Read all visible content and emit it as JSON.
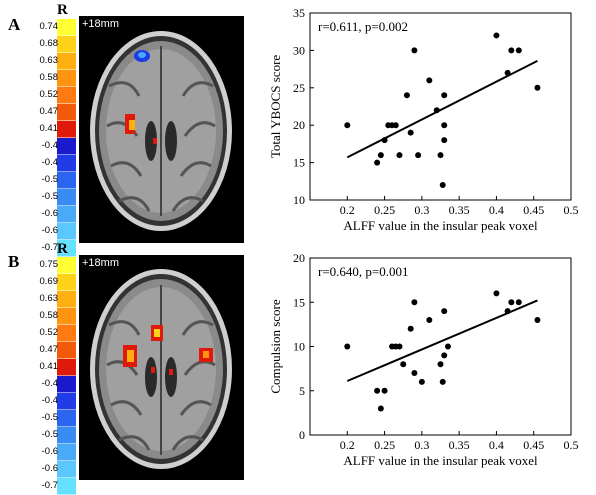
{
  "panels": [
    {
      "letter": "A",
      "orientation_label": "R",
      "slice_label": "+18mm",
      "colorbar_ticks": [
        "0.74",
        "0.68",
        "0.63",
        "0.58",
        "0.52",
        "0.47",
        "0.41",
        "-0.4",
        "-0.4",
        "-0.5",
        "-0.5",
        "-0.6",
        "-0.6",
        "-0.7"
      ],
      "colorbar_colors": [
        "#ffff33",
        "#ffd21a",
        "#ffb010",
        "#ff9410",
        "#ff7a10",
        "#f25a0a",
        "#e01a0a",
        "#1a1acc",
        "#1f3ce6",
        "#2a66f0",
        "#3a8cf5",
        "#4aaaf8",
        "#5ac8fb",
        "#66e0ff"
      ]
    },
    {
      "letter": "B",
      "orientation_label": "R",
      "slice_label": "+18mm",
      "colorbar_ticks": [
        "0.75",
        "0.69",
        "0.63",
        "0.58",
        "0.52",
        "0.47",
        "0.41",
        "-0.4",
        "-0.4",
        "-0.5",
        "-0.5",
        "-0.6",
        "-0.6",
        "-0.7"
      ],
      "colorbar_colors": [
        "#ffff33",
        "#ffd21a",
        "#ffb010",
        "#ff9410",
        "#ff7a10",
        "#f25a0a",
        "#e01a0a",
        "#1a1acc",
        "#1f3ce6",
        "#2a66f0",
        "#3a8cf5",
        "#4aaaf8",
        "#5ac8fb",
        "#66e0ff"
      ]
    }
  ],
  "chart_data": [
    {
      "type": "scatter",
      "annotation": "r=0.611, p=0.002",
      "xlabel": "ALFF value in the insular peak voxel",
      "ylabel": "Total YBOCS score",
      "xlim": [
        0.15,
        0.5
      ],
      "ylim": [
        10,
        35
      ],
      "xticks": [
        "0.2",
        "0.25",
        "0.3",
        "0.35",
        "0.4",
        "0.45",
        "0.5"
      ],
      "yticks": [
        "10",
        "15",
        "20",
        "25",
        "30",
        "35"
      ],
      "points": [
        [
          0.2,
          20
        ],
        [
          0.24,
          15
        ],
        [
          0.245,
          16
        ],
        [
          0.25,
          18
        ],
        [
          0.255,
          20
        ],
        [
          0.26,
          20
        ],
        [
          0.265,
          20
        ],
        [
          0.27,
          16
        ],
        [
          0.28,
          24
        ],
        [
          0.285,
          19
        ],
        [
          0.29,
          30
        ],
        [
          0.295,
          16
        ],
        [
          0.31,
          26
        ],
        [
          0.32,
          22
        ],
        [
          0.325,
          16
        ],
        [
          0.328,
          12
        ],
        [
          0.33,
          18
        ],
        [
          0.33,
          20
        ],
        [
          0.33,
          24
        ],
        [
          0.4,
          32
        ],
        [
          0.415,
          27
        ],
        [
          0.42,
          30
        ],
        [
          0.43,
          30
        ],
        [
          0.455,
          25
        ]
      ],
      "fit_line": [
        [
          0.2,
          15.7
        ],
        [
          0.455,
          28.6
        ]
      ]
    },
    {
      "type": "scatter",
      "annotation": "r=0.640, p=0.001",
      "xlabel": "ALFF value in the insular peak voxel",
      "ylabel": "Compulsion score",
      "xlim": [
        0.15,
        0.5
      ],
      "ylim": [
        0,
        20
      ],
      "xticks": [
        "0.2",
        "0.25",
        "0.3",
        "0.35",
        "0.4",
        "0.45",
        "0.5"
      ],
      "yticks": [
        "0",
        "5",
        "10",
        "15",
        "20"
      ],
      "points": [
        [
          0.2,
          10
        ],
        [
          0.24,
          5
        ],
        [
          0.245,
          3
        ],
        [
          0.25,
          5
        ],
        [
          0.26,
          10
        ],
        [
          0.265,
          10
        ],
        [
          0.27,
          10
        ],
        [
          0.275,
          8
        ],
        [
          0.285,
          12
        ],
        [
          0.29,
          15
        ],
        [
          0.29,
          7
        ],
        [
          0.3,
          6
        ],
        [
          0.31,
          13
        ],
        [
          0.325,
          8
        ],
        [
          0.328,
          6
        ],
        [
          0.33,
          14
        ],
        [
          0.33,
          9
        ],
        [
          0.335,
          10
        ],
        [
          0.4,
          16
        ],
        [
          0.415,
          14
        ],
        [
          0.42,
          15
        ],
        [
          0.43,
          15
        ],
        [
          0.455,
          13
        ]
      ],
      "fit_line": [
        [
          0.2,
          6.1
        ],
        [
          0.455,
          15.2
        ]
      ]
    }
  ]
}
